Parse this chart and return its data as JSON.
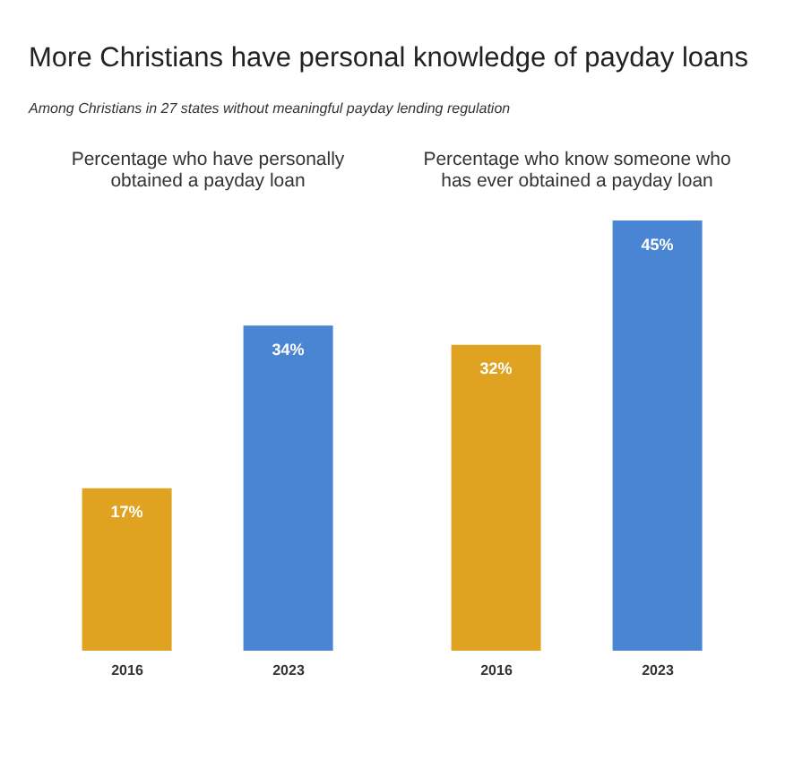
{
  "chart_data": [
    {
      "type": "bar",
      "title": "More Christians have personal knowledge of payday loans",
      "subtitle": "Among Christians in 27 states without meaningful payday lending regulation",
      "annotations": [
        "Percentage who have personally obtained a payday loan"
      ],
      "categories": [
        "2016",
        "2023"
      ],
      "values": [
        17,
        34
      ],
      "colors": [
        "#e0a321",
        "#4a85d4"
      ],
      "value_labels": [
        "17%",
        "34%"
      ],
      "tick_labels": "x",
      "grid": false,
      "legend": false
    },
    {
      "type": "bar",
      "annotations": [
        "Percentage who know someone who has ever obtained a payday loan"
      ],
      "categories": [
        "2016",
        "2023"
      ],
      "values": [
        32,
        45
      ],
      "colors": [
        "#e0a321",
        "#4a85d4"
      ],
      "value_labels": [
        "32%",
        "45%"
      ],
      "tick_labels": "x",
      "grid": false,
      "legend": false
    }
  ]
}
